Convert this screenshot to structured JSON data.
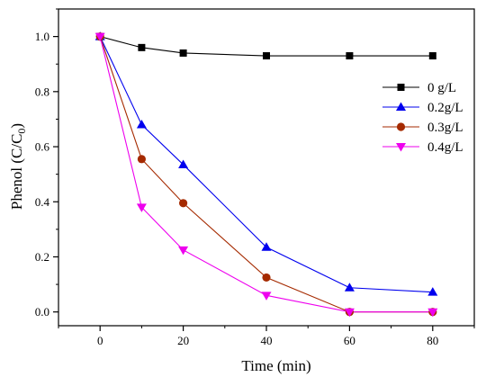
{
  "chart_data": {
    "type": "line",
    "xlabel": "Time (min)",
    "ylabel_main": "Phenol (C/C",
    "ylabel_sub": "0",
    "ylabel_close": ")",
    "xlim": [
      -10,
      90
    ],
    "ylim": [
      -0.05,
      1.1
    ],
    "x_ticks": [
      0,
      20,
      40,
      60,
      80
    ],
    "y_ticks": [
      0.0,
      0.2,
      0.4,
      0.6,
      0.8,
      1.0
    ],
    "y_tick_labels": [
      "0.0",
      "0.2",
      "0.4",
      "0.6",
      "0.8",
      "1.0"
    ],
    "legend_position": "right",
    "series": [
      {
        "name": "0 g/L",
        "color": "#000000",
        "marker": "square",
        "x": [
          0,
          10,
          20,
          40,
          60,
          80
        ],
        "y": [
          1.0,
          0.96,
          0.94,
          0.93,
          0.93,
          0.93
        ]
      },
      {
        "name": "0.2g/L",
        "color": "#0000ee",
        "marker": "triangle-up",
        "x": [
          0,
          10,
          20,
          40,
          60,
          80
        ],
        "y": [
          1.0,
          0.68,
          0.535,
          0.235,
          0.088,
          0.072
        ]
      },
      {
        "name": "0.3g/L",
        "color": "#a52a00",
        "marker": "circle",
        "x": [
          0,
          10,
          20,
          40,
          60,
          80
        ],
        "y": [
          1.0,
          0.555,
          0.395,
          0.125,
          0.0,
          0.0
        ]
      },
      {
        "name": "0.4g/L",
        "color": "#ee00ee",
        "marker": "triangle-down",
        "x": [
          0,
          10,
          20,
          40,
          60,
          80
        ],
        "y": [
          1.0,
          0.38,
          0.225,
          0.06,
          0.0,
          0.0
        ]
      }
    ]
  }
}
